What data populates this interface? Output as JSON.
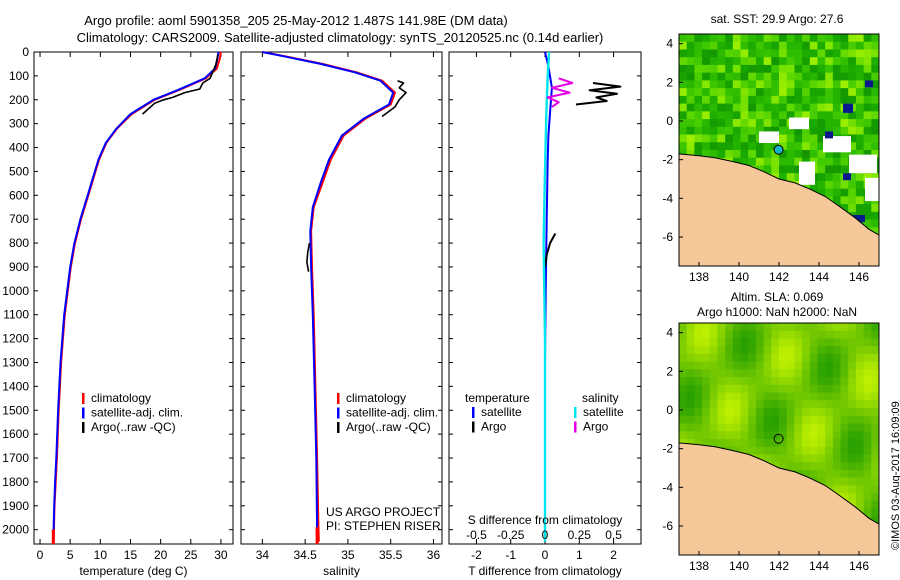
{
  "header": {
    "line1": "Argo profile: aoml 5901358_205 25-May-2012 1.487S 141.98E (DM data)",
    "line2": "Climatology: CARS2009. Satellite-adjusted climatology: synTS_20120525.nc (0.14d earlier)"
  },
  "colors": {
    "climatology": "#ff0000",
    "satellite": "#0000ff",
    "argo": "#000000",
    "sal_satellite": "#00e5ee",
    "sal_argo": "#e600e6",
    "land": "#f5c89a",
    "sea_green": "#3ccc14"
  },
  "credit": {
    "project": "US ARGO PROJECT",
    "pi": "PI: STEPHEN RISER"
  },
  "stamp": "©IMOS 03-Aug-2017 16:09:09",
  "chart_data": [
    {
      "id": "temperature",
      "type": "line",
      "xlabel": "temperature (deg C)",
      "xlim": [
        -1,
        32
      ],
      "xticks": [
        0,
        5,
        10,
        15,
        20,
        25,
        30
      ],
      "ylim": [
        0,
        2060
      ],
      "yticks": [
        0,
        100,
        200,
        300,
        400,
        500,
        600,
        700,
        800,
        900,
        1000,
        1100,
        1200,
        1300,
        1400,
        1500,
        1600,
        1700,
        1800,
        1900,
        2000
      ],
      "legend": [
        "climatology",
        "satellite-adj. clim.",
        "Argo(..raw -QC)"
      ],
      "series": [
        {
          "name": "climatology",
          "color": "#ff0000",
          "x": [
            30.0,
            29.8,
            29.3,
            27.5,
            23.0,
            19.0,
            15.2,
            12.8,
            11.0,
            9.8,
            8.0,
            6.8,
            5.8,
            5.1,
            4.6,
            4.1,
            3.5,
            3.1,
            2.8,
            2.6,
            2.4,
            2.3,
            2.25
          ],
          "y": [
            0,
            30,
            70,
            110,
            160,
            200,
            260,
            320,
            380,
            450,
            600,
            700,
            800,
            900,
            1000,
            1100,
            1300,
            1500,
            1700,
            1800,
            1900,
            2000,
            2050
          ]
        },
        {
          "name": "satellite-adj. clim.",
          "color": "#0000ff",
          "x": [
            29.6,
            29.4,
            29.0,
            27.3,
            22.8,
            18.8,
            15.0,
            12.7,
            10.9,
            9.7,
            7.9,
            6.7,
            5.7,
            5.0,
            4.5,
            4.0,
            3.4,
            3.0,
            2.7,
            2.5,
            2.35,
            2.25
          ],
          "y": [
            0,
            30,
            70,
            110,
            160,
            200,
            260,
            320,
            380,
            450,
            600,
            700,
            800,
            900,
            1000,
            1100,
            1300,
            1500,
            1700,
            1800,
            1900,
            2000
          ]
        },
        {
          "name": "Argo",
          "color": "#000000",
          "x": [
            29.5,
            29.2,
            28.2,
            27.0,
            26.5,
            24.0,
            22.0,
            20.5,
            19.0,
            17.0
          ],
          "y": [
            10,
            50,
            110,
            130,
            155,
            170,
            190,
            200,
            215,
            260
          ]
        }
      ]
    },
    {
      "id": "salinity",
      "type": "line",
      "xlabel": "salinity",
      "xlim": [
        33.75,
        36.1
      ],
      "xticks": [
        34,
        34.5,
        35,
        35.5,
        36
      ],
      "ylim": [
        0,
        2060
      ],
      "legend": [
        "climatology",
        "satellite-adj. clim.",
        "Argo(..raw -QC)"
      ],
      "series": [
        {
          "name": "climatology",
          "color": "#ff0000",
          "x": [
            34.0,
            34.3,
            34.7,
            35.1,
            35.4,
            35.55,
            35.5,
            35.2,
            34.95,
            34.8,
            34.7,
            34.6,
            34.57,
            34.58,
            34.6,
            34.62,
            34.64,
            34.65,
            34.66
          ],
          "y": [
            0,
            20,
            50,
            85,
            120,
            170,
            220,
            280,
            350,
            450,
            550,
            650,
            750,
            900,
            1100,
            1400,
            1700,
            1900,
            2050
          ]
        },
        {
          "name": "satellite-adj. clim.",
          "color": "#0000ff",
          "x": [
            34.0,
            34.28,
            34.68,
            35.08,
            35.38,
            35.53,
            35.48,
            35.18,
            34.93,
            34.78,
            34.68,
            34.59,
            34.56,
            34.57,
            34.59,
            34.61,
            34.63,
            34.64
          ],
          "y": [
            0,
            20,
            50,
            85,
            120,
            170,
            220,
            280,
            350,
            450,
            550,
            650,
            750,
            900,
            1100,
            1400,
            1700,
            2000
          ]
        },
        {
          "name": "Argo",
          "color": "#000000",
          "x": [
            35.58,
            35.65,
            35.6,
            35.68,
            35.6,
            35.55,
            35.4
          ],
          "y": [
            120,
            130,
            150,
            170,
            200,
            230,
            270
          ]
        },
        {
          "name": "Argo deep",
          "color": "#000000",
          "x": [
            34.55,
            34.53,
            34.52,
            34.54
          ],
          "y": [
            800,
            840,
            880,
            920
          ]
        }
      ]
    },
    {
      "id": "difference",
      "type": "line",
      "xlabel": "T difference from climatology",
      "xlabel_top": "S difference from climatology",
      "xlim": [
        -2.8,
        2.8
      ],
      "xticks": [
        -2,
        -1,
        0,
        1,
        2
      ],
      "sticks": [
        -0.5,
        -0.25,
        0,
        0.25,
        0.5
      ],
      "slim": [
        -0.7,
        0.7
      ],
      "ylim": [
        0,
        2060
      ],
      "legend_title_t": "temperature",
      "legend_title_s": "salinity",
      "legend": [
        "satellite",
        "Argo",
        "satellite",
        "Argo"
      ],
      "series": [
        {
          "name": "T satellite",
          "color": "#0000ff",
          "axis": "t",
          "x": [
            0.0,
            0.1,
            0.2,
            0.15,
            0.1,
            0.08,
            0.05,
            0.02,
            0.0,
            0.0,
            0.0
          ],
          "y": [
            0,
            60,
            150,
            250,
            350,
            450,
            700,
            1000,
            1300,
            1700,
            2050
          ]
        },
        {
          "name": "T Argo",
          "color": "#000000",
          "axis": "t",
          "x": [
            1.4,
            2.2,
            1.3,
            2.1,
            1.5,
            1.8,
            0.9
          ],
          "y": [
            130,
            145,
            160,
            175,
            190,
            205,
            220
          ]
        },
        {
          "name": "T Argo deep",
          "color": "#000000",
          "axis": "t",
          "x": [
            0.3,
            0.15,
            0.05,
            0.0
          ],
          "y": [
            760,
            800,
            850,
            900
          ]
        },
        {
          "name": "S satellite",
          "color": "#00e5ee",
          "axis": "s",
          "x": [
            0.03,
            0.02,
            0.01,
            0.0,
            -0.01,
            0.0,
            0.0,
            0.0
          ],
          "y": [
            0,
            100,
            250,
            500,
            800,
            1200,
            1600,
            2050
          ]
        },
        {
          "name": "S Argo",
          "color": "#e600e6",
          "axis": "s",
          "x": [
            0.1,
            0.2,
            0.05,
            0.18,
            0.02,
            0.1,
            0.05
          ],
          "y": [
            110,
            130,
            150,
            170,
            190,
            210,
            230
          ]
        }
      ]
    },
    {
      "id": "sst-map",
      "type": "heatmap",
      "title": "sat. SST: 29.9 Argo: 27.6",
      "xlim": [
        137,
        147
      ],
      "xticks": [
        138,
        140,
        142,
        144,
        146
      ],
      "ylim": [
        -7.5,
        4.5
      ],
      "yticks": [
        4,
        2,
        0,
        -2,
        -4,
        -6
      ],
      "marker": {
        "lon": 141.98,
        "lat": -1.487
      }
    },
    {
      "id": "sla-map",
      "type": "heatmap",
      "title": "Altim. SLA: 0.069",
      "subtitle": "Argo h1000: NaN h2000: NaN",
      "xlim": [
        137,
        147
      ],
      "xticks": [
        138,
        140,
        142,
        144,
        146
      ],
      "ylim": [
        -7.5,
        4.5
      ],
      "yticks": [
        4,
        2,
        0,
        -2,
        -4,
        -6
      ],
      "marker": {
        "lon": 141.98,
        "lat": -1.487
      }
    }
  ]
}
